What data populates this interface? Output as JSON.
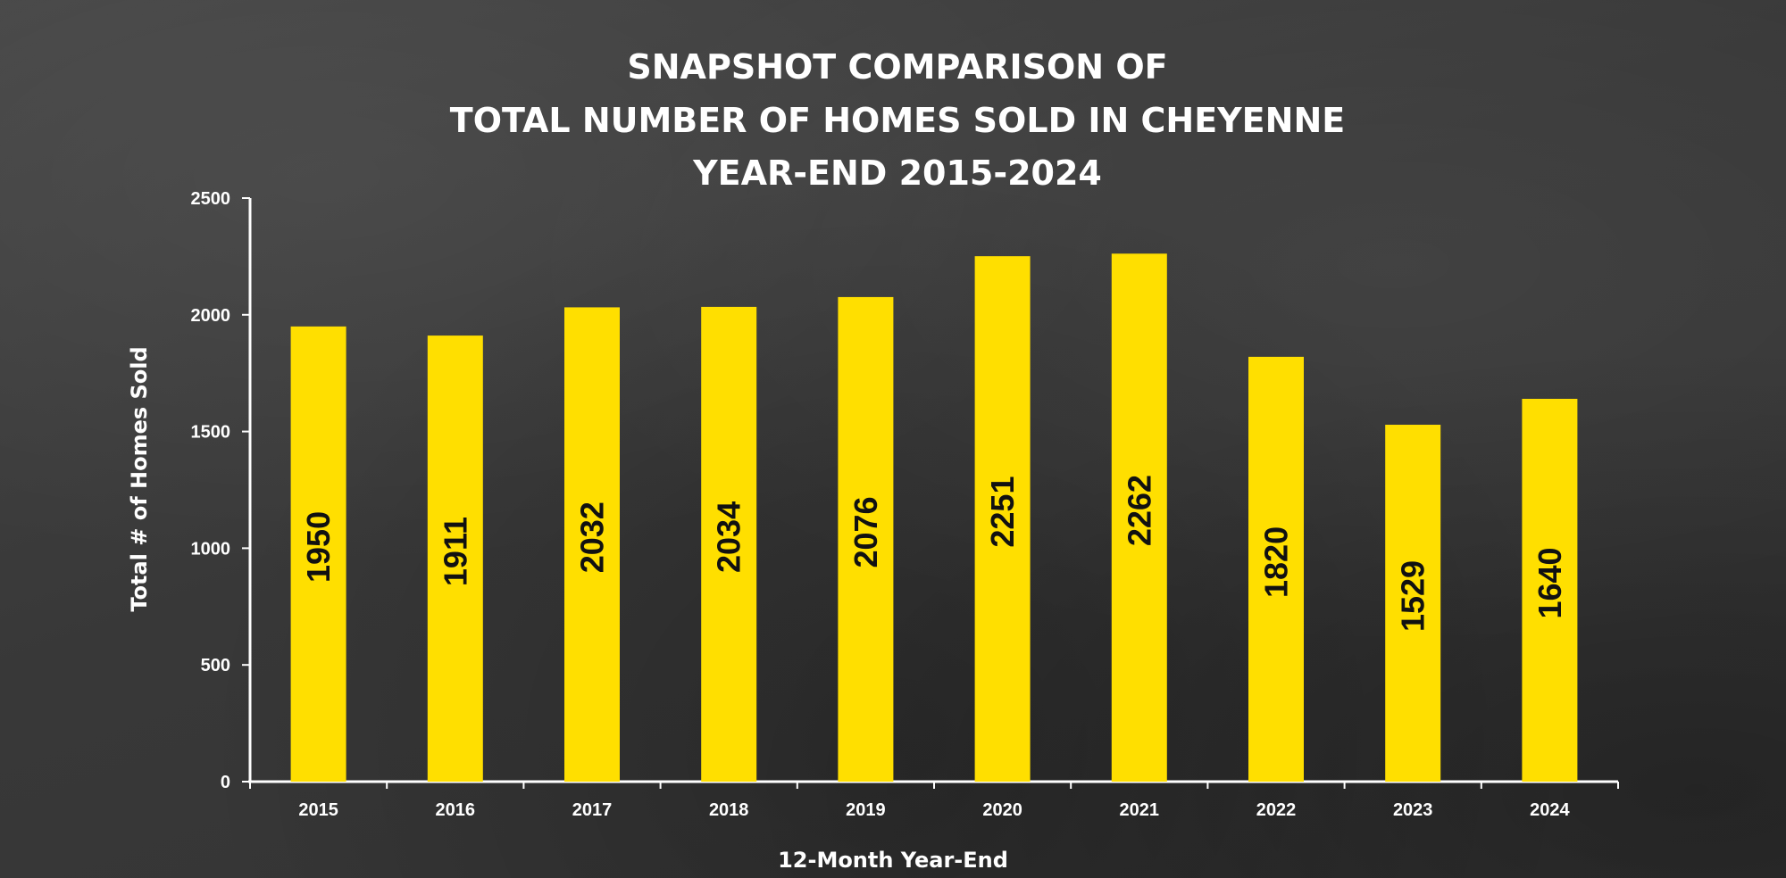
{
  "chart_data": {
    "type": "bar",
    "title_lines": [
      "SNAPSHOT COMPARISON OF",
      "TOTAL NUMBER OF HOMES SOLD IN CHEYENNE",
      "YEAR-END 2015-2024"
    ],
    "xlabel": "12-Month Year-End",
    "ylabel": "Total # of Homes Sold",
    "categories": [
      "2015",
      "2016",
      "2017",
      "2018",
      "2019",
      "2020",
      "2021",
      "2022",
      "2023",
      "2024"
    ],
    "values": [
      1950,
      1911,
      2032,
      2034,
      2076,
      2251,
      2262,
      1820,
      1529,
      1640
    ],
    "data_labels": [
      "1950",
      "1911",
      "2032",
      "2034",
      "2076",
      "2251",
      "2262",
      "1820",
      "1529",
      "1640"
    ],
    "ylim": [
      0,
      2500
    ],
    "yticks": [
      0,
      500,
      1000,
      1500,
      2000,
      2500
    ],
    "ytick_labels": [
      "0",
      "500",
      "1000",
      "1500",
      "2000",
      "2500"
    ],
    "grid": false,
    "legend": "none",
    "colors": {
      "bar": "#ffdf00",
      "axis": "#ffffff",
      "text": "#ffffff",
      "label": "#111111",
      "background": "#3b3b3b"
    }
  }
}
